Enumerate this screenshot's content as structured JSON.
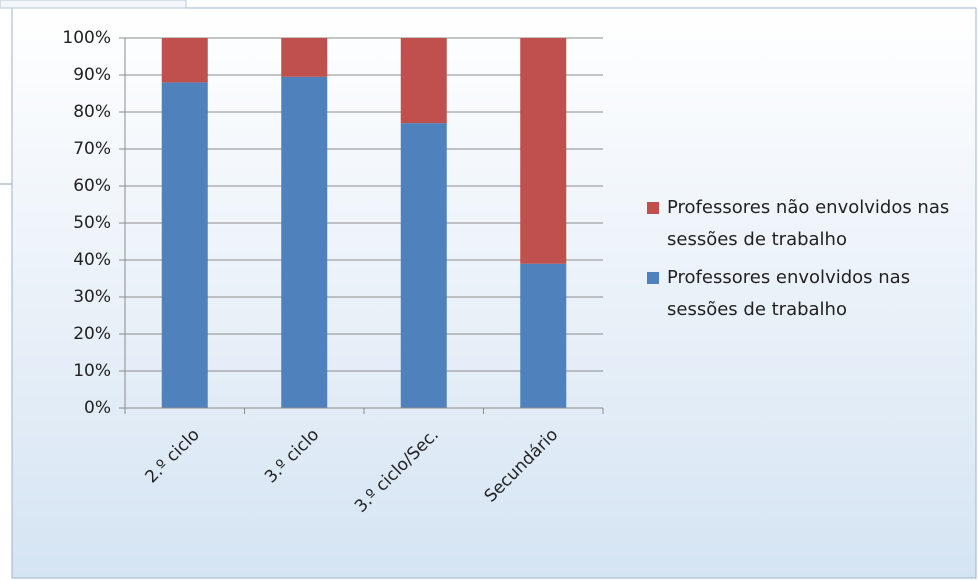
{
  "chart_data": {
    "type": "stacked_bar",
    "categories": [
      "2.º ciclo",
      "3.º ciclo",
      "3.º ciclo/Sec.",
      "Secundário"
    ],
    "series": [
      {
        "name": "Professores envolvidos nas sessões de trabalho",
        "color": "#4f81bd",
        "values": [
          88,
          89.5,
          77,
          39
        ]
      },
      {
        "name": "Professores não envolvidos nas sessões de trabalho",
        "color": "#c0504d",
        "values": [
          12,
          10.5,
          23,
          61
        ]
      }
    ],
    "ylim": [
      0,
      100
    ],
    "yticks": [
      {
        "value": 0,
        "label": "0%"
      },
      {
        "value": 10,
        "label": "10%"
      },
      {
        "value": 20,
        "label": "20%"
      },
      {
        "value": 30,
        "label": "30%"
      },
      {
        "value": 40,
        "label": "40%"
      },
      {
        "value": 50,
        "label": "50%"
      },
      {
        "value": 60,
        "label": "60%"
      },
      {
        "value": 70,
        "label": "70%"
      },
      {
        "value": 80,
        "label": "80%"
      },
      {
        "value": 90,
        "label": "90%"
      },
      {
        "value": 100,
        "label": "100%"
      }
    ],
    "grid": true,
    "legend": "right"
  }
}
